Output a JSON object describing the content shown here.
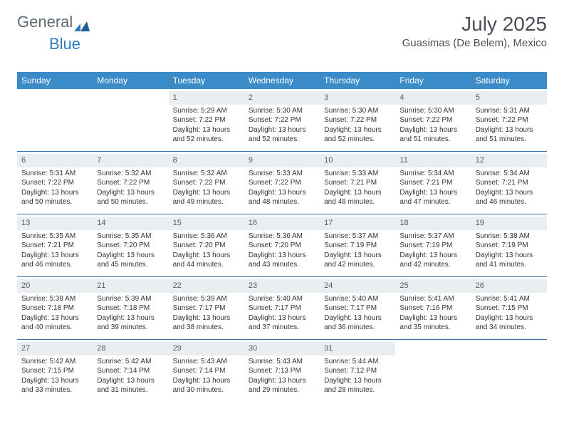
{
  "brand": {
    "general": "General",
    "blue": "Blue"
  },
  "header": {
    "month": "July 2025",
    "location": "Guasimas (De Belem), Mexico"
  },
  "colors": {
    "header_bg": "#3b8bc8",
    "row_border": "#2f6fa8",
    "daynum_bg": "#ebeef0",
    "text": "#333333",
    "brand_gray": "#5f6a72",
    "brand_blue": "#2f7bbf"
  },
  "day_headers": [
    "Sunday",
    "Monday",
    "Tuesday",
    "Wednesday",
    "Thursday",
    "Friday",
    "Saturday"
  ],
  "weeks": [
    [
      null,
      null,
      {
        "n": "1",
        "sr": "5:29 AM",
        "ss": "7:22 PM",
        "dl": "13 hours and 52 minutes."
      },
      {
        "n": "2",
        "sr": "5:30 AM",
        "ss": "7:22 PM",
        "dl": "13 hours and 52 minutes."
      },
      {
        "n": "3",
        "sr": "5:30 AM",
        "ss": "7:22 PM",
        "dl": "13 hours and 52 minutes."
      },
      {
        "n": "4",
        "sr": "5:30 AM",
        "ss": "7:22 PM",
        "dl": "13 hours and 51 minutes."
      },
      {
        "n": "5",
        "sr": "5:31 AM",
        "ss": "7:22 PM",
        "dl": "13 hours and 51 minutes."
      }
    ],
    [
      {
        "n": "6",
        "sr": "5:31 AM",
        "ss": "7:22 PM",
        "dl": "13 hours and 50 minutes."
      },
      {
        "n": "7",
        "sr": "5:32 AM",
        "ss": "7:22 PM",
        "dl": "13 hours and 50 minutes."
      },
      {
        "n": "8",
        "sr": "5:32 AM",
        "ss": "7:22 PM",
        "dl": "13 hours and 49 minutes."
      },
      {
        "n": "9",
        "sr": "5:33 AM",
        "ss": "7:22 PM",
        "dl": "13 hours and 48 minutes."
      },
      {
        "n": "10",
        "sr": "5:33 AM",
        "ss": "7:21 PM",
        "dl": "13 hours and 48 minutes."
      },
      {
        "n": "11",
        "sr": "5:34 AM",
        "ss": "7:21 PM",
        "dl": "13 hours and 47 minutes."
      },
      {
        "n": "12",
        "sr": "5:34 AM",
        "ss": "7:21 PM",
        "dl": "13 hours and 46 minutes."
      }
    ],
    [
      {
        "n": "13",
        "sr": "5:35 AM",
        "ss": "7:21 PM",
        "dl": "13 hours and 46 minutes."
      },
      {
        "n": "14",
        "sr": "5:35 AM",
        "ss": "7:20 PM",
        "dl": "13 hours and 45 minutes."
      },
      {
        "n": "15",
        "sr": "5:36 AM",
        "ss": "7:20 PM",
        "dl": "13 hours and 44 minutes."
      },
      {
        "n": "16",
        "sr": "5:36 AM",
        "ss": "7:20 PM",
        "dl": "13 hours and 43 minutes."
      },
      {
        "n": "17",
        "sr": "5:37 AM",
        "ss": "7:19 PM",
        "dl": "13 hours and 42 minutes."
      },
      {
        "n": "18",
        "sr": "5:37 AM",
        "ss": "7:19 PM",
        "dl": "13 hours and 42 minutes."
      },
      {
        "n": "19",
        "sr": "5:38 AM",
        "ss": "7:19 PM",
        "dl": "13 hours and 41 minutes."
      }
    ],
    [
      {
        "n": "20",
        "sr": "5:38 AM",
        "ss": "7:18 PM",
        "dl": "13 hours and 40 minutes."
      },
      {
        "n": "21",
        "sr": "5:39 AM",
        "ss": "7:18 PM",
        "dl": "13 hours and 39 minutes."
      },
      {
        "n": "22",
        "sr": "5:39 AM",
        "ss": "7:17 PM",
        "dl": "13 hours and 38 minutes."
      },
      {
        "n": "23",
        "sr": "5:40 AM",
        "ss": "7:17 PM",
        "dl": "13 hours and 37 minutes."
      },
      {
        "n": "24",
        "sr": "5:40 AM",
        "ss": "7:17 PM",
        "dl": "13 hours and 36 minutes."
      },
      {
        "n": "25",
        "sr": "5:41 AM",
        "ss": "7:16 PM",
        "dl": "13 hours and 35 minutes."
      },
      {
        "n": "26",
        "sr": "5:41 AM",
        "ss": "7:15 PM",
        "dl": "13 hours and 34 minutes."
      }
    ],
    [
      {
        "n": "27",
        "sr": "5:42 AM",
        "ss": "7:15 PM",
        "dl": "13 hours and 33 minutes."
      },
      {
        "n": "28",
        "sr": "5:42 AM",
        "ss": "7:14 PM",
        "dl": "13 hours and 31 minutes."
      },
      {
        "n": "29",
        "sr": "5:43 AM",
        "ss": "7:14 PM",
        "dl": "13 hours and 30 minutes."
      },
      {
        "n": "30",
        "sr": "5:43 AM",
        "ss": "7:13 PM",
        "dl": "13 hours and 29 minutes."
      },
      {
        "n": "31",
        "sr": "5:44 AM",
        "ss": "7:12 PM",
        "dl": "13 hours and 28 minutes."
      },
      null,
      null
    ]
  ],
  "labels": {
    "sunrise": "Sunrise:",
    "sunset": "Sunset:",
    "daylight": "Daylight:"
  }
}
